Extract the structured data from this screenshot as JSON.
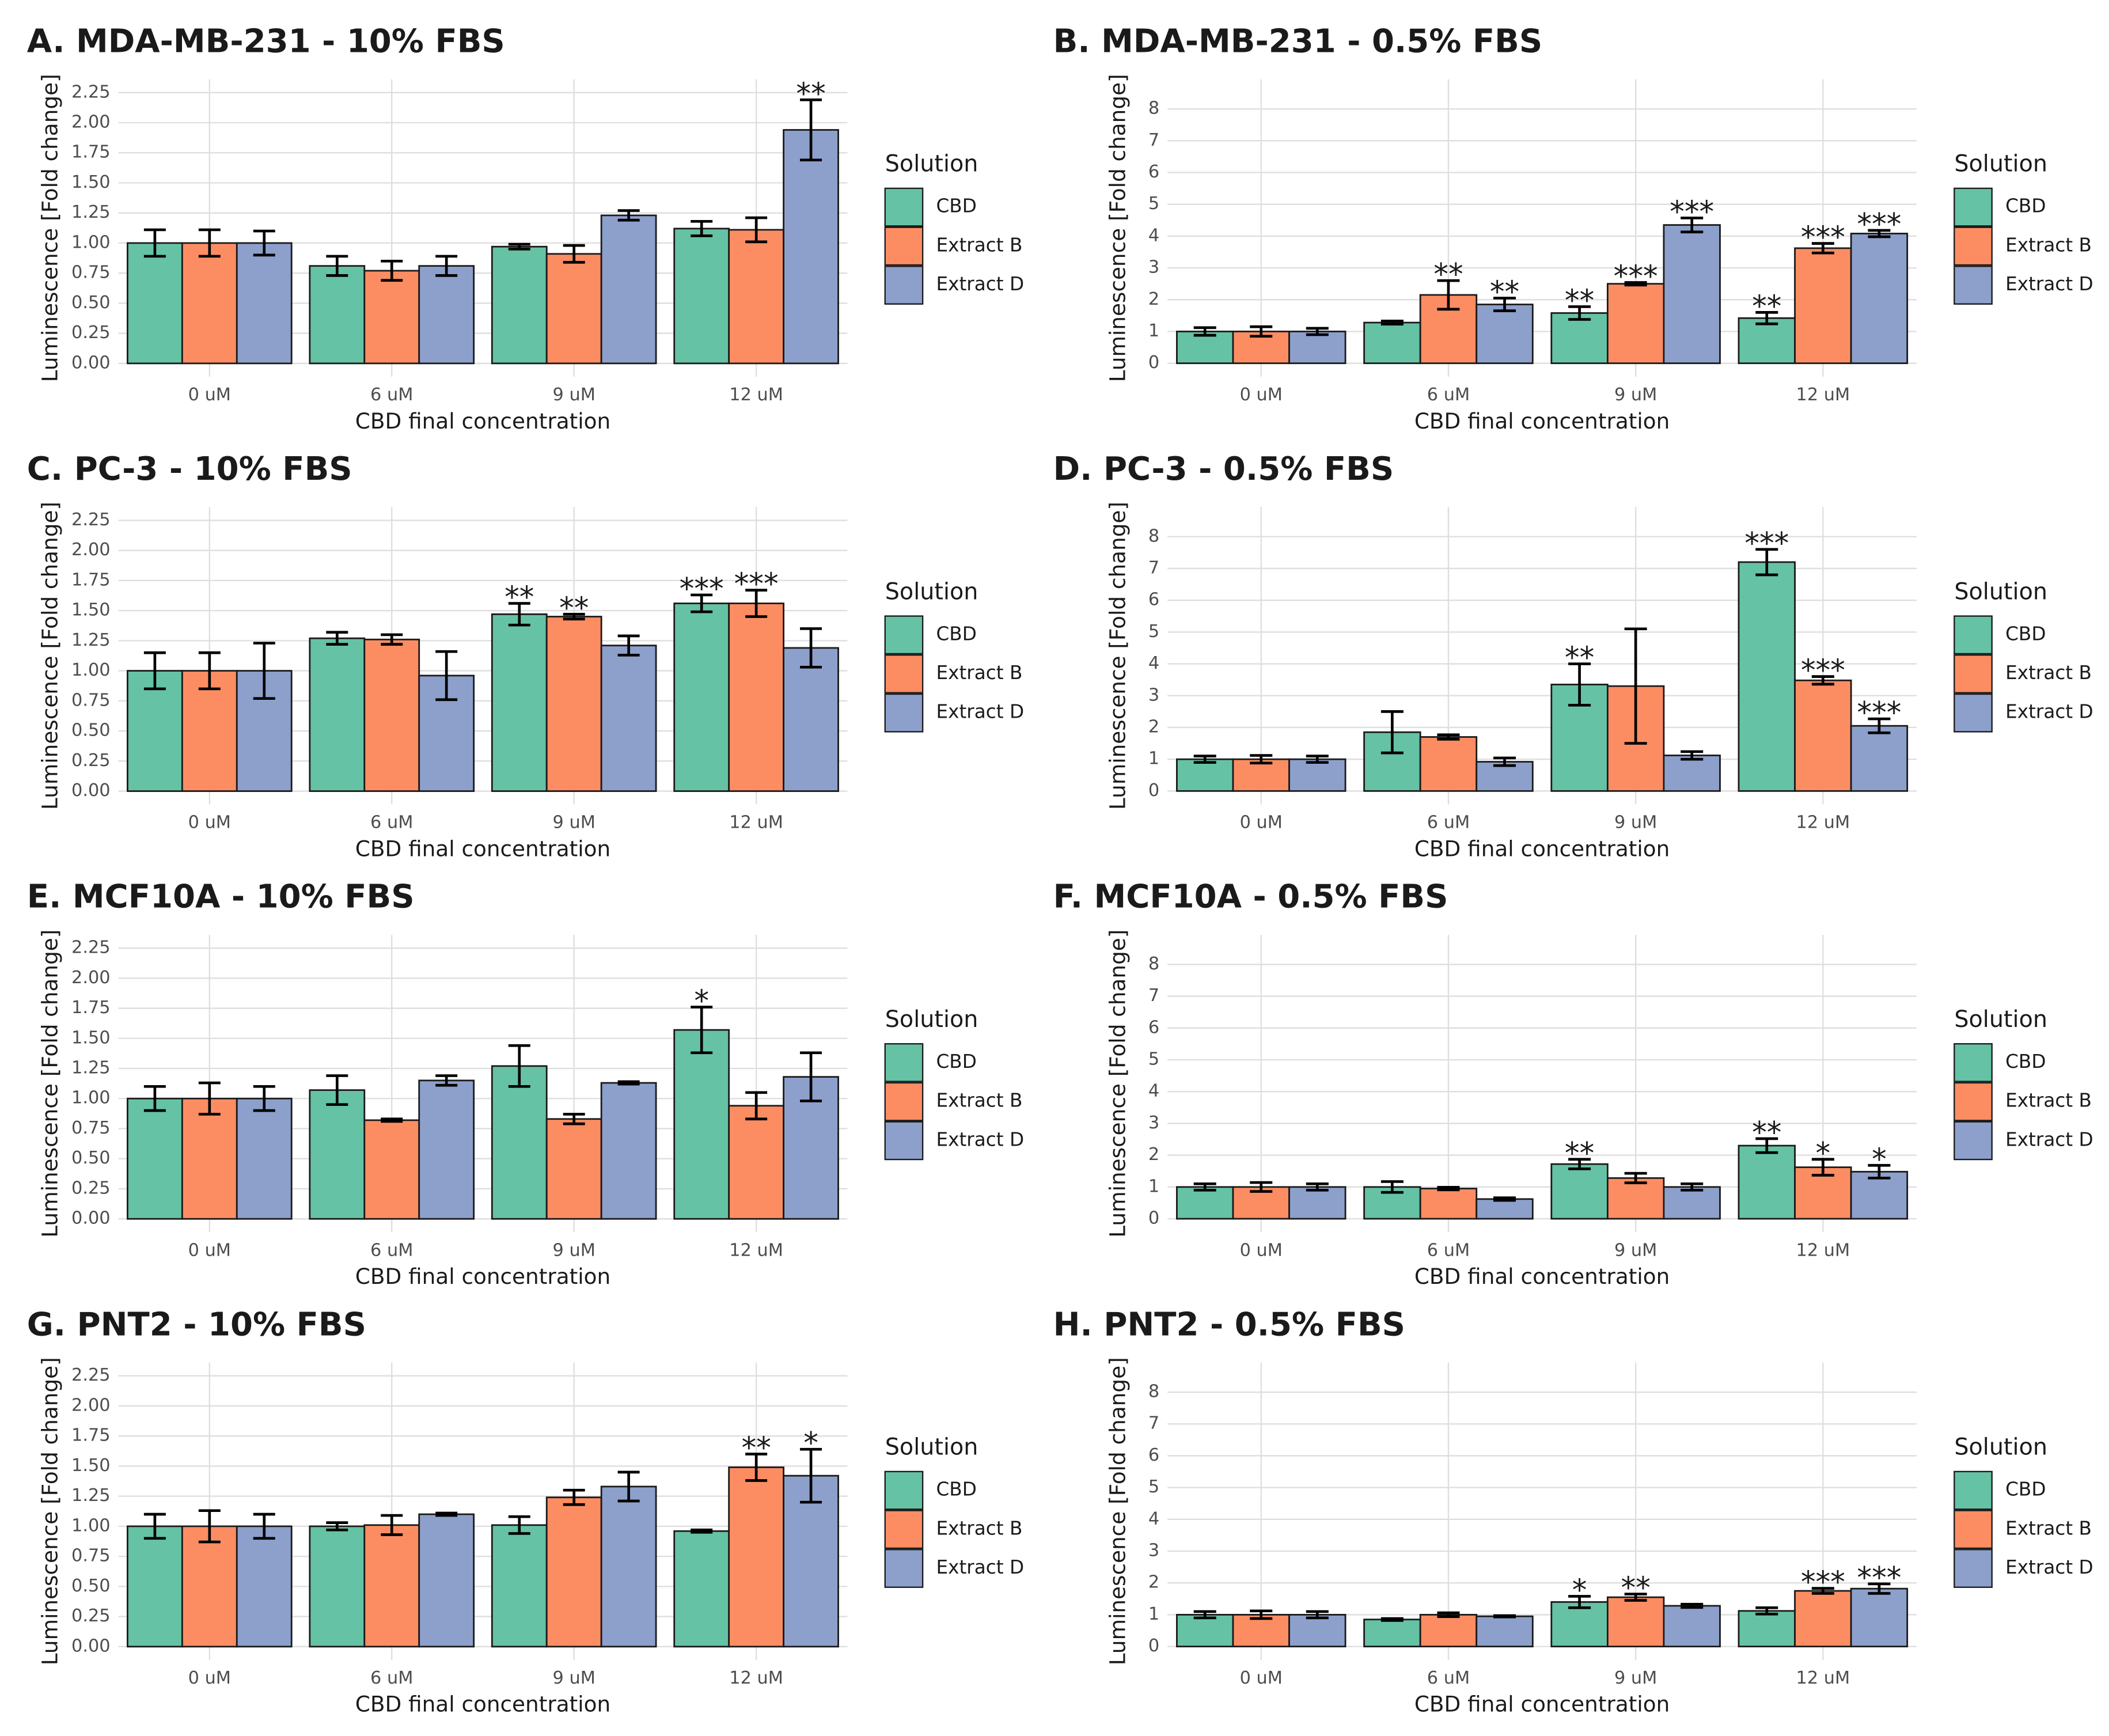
{
  "chart_data": [
    {
      "type": "bar",
      "title": "A. MDA-MB-231 - 10% FBS",
      "x_label": "CBD final concentration",
      "y_label": "Luminescence [Fold change]",
      "legend_title": "Solution",
      "legend": "right",
      "grid": true,
      "categories": [
        "0 uM",
        "6 uM",
        "9 uM",
        "12 uM"
      ],
      "ylim": [
        -0.11,
        2.36
      ],
      "yticks": [
        {
          "value": 0,
          "label": "0.00"
        },
        {
          "value": 0.25,
          "label": "0.25"
        },
        {
          "value": 0.5,
          "label": "0.50"
        },
        {
          "value": 0.75,
          "label": "0.75"
        },
        {
          "value": 1,
          "label": "1.00"
        },
        {
          "value": 1.25,
          "label": "1.25"
        },
        {
          "value": 1.5,
          "label": "1.50"
        },
        {
          "value": 1.75,
          "label": "1.75"
        },
        {
          "value": 2,
          "label": "2.00"
        },
        {
          "value": 2.25,
          "label": "2.25"
        }
      ],
      "series": [
        {
          "name": "CBD",
          "color": "#66c2a5",
          "values": [
            1.0,
            0.81,
            0.97,
            1.12
          ],
          "errors": [
            0.11,
            0.08,
            0.02,
            0.06
          ],
          "significance": [
            null,
            null,
            null,
            null
          ]
        },
        {
          "name": "Extract B",
          "color": "#fc8d62",
          "values": [
            1.0,
            0.77,
            0.91,
            1.11
          ],
          "errors": [
            0.11,
            0.08,
            0.07,
            0.1
          ],
          "significance": [
            null,
            null,
            null,
            null
          ]
        },
        {
          "name": "Extract D",
          "color": "#8da0cb",
          "values": [
            1.0,
            0.81,
            1.23,
            1.94
          ],
          "errors": [
            0.1,
            0.08,
            0.04,
            0.25
          ],
          "significance": [
            null,
            null,
            null,
            "**"
          ]
        }
      ]
    },
    {
      "type": "bar",
      "title": "B. MDA-MB-231 - 0.5% FBS",
      "x_label": "CBD final concentration",
      "y_label": "Luminescence [Fold change]",
      "legend_title": "Solution",
      "legend": "right",
      "grid": true,
      "categories": [
        "0 uM",
        "6 uM",
        "9 uM",
        "12 uM"
      ],
      "ylim": [
        -0.42,
        8.93
      ],
      "yticks": [
        0,
        1,
        2,
        3,
        4,
        5,
        6,
        7,
        8
      ],
      "series": [
        {
          "name": "CBD",
          "color": "#66c2a5",
          "values": [
            1.0,
            1.28,
            1.58,
            1.42
          ],
          "errors": [
            0.12,
            0.05,
            0.2,
            0.18
          ],
          "significance": [
            null,
            null,
            "**",
            "**"
          ]
        },
        {
          "name": "Extract B",
          "color": "#fc8d62",
          "values": [
            1.0,
            2.15,
            2.5,
            3.62
          ],
          "errors": [
            0.15,
            0.45,
            0.04,
            0.15
          ],
          "significance": [
            null,
            "**",
            "***",
            "***"
          ]
        },
        {
          "name": "Extract D",
          "color": "#8da0cb",
          "values": [
            1.0,
            1.85,
            4.35,
            4.08
          ],
          "errors": [
            0.1,
            0.2,
            0.22,
            0.1
          ],
          "significance": [
            null,
            "**",
            "***",
            "***"
          ]
        }
      ]
    },
    {
      "type": "bar",
      "title": "C. PC-3 - 10% FBS",
      "x_label": "CBD final concentration",
      "y_label": "Luminescence [Fold change]",
      "legend_title": "Solution",
      "legend": "right",
      "grid": true,
      "categories": [
        "0 uM",
        "6 uM",
        "9 uM",
        "12 uM"
      ],
      "ylim": [
        -0.11,
        2.36
      ],
      "yticks": [
        {
          "value": 0,
          "label": "0.00"
        },
        {
          "value": 0.25,
          "label": "0.25"
        },
        {
          "value": 0.5,
          "label": "0.50"
        },
        {
          "value": 0.75,
          "label": "0.75"
        },
        {
          "value": 1,
          "label": "1.00"
        },
        {
          "value": 1.25,
          "label": "1.25"
        },
        {
          "value": 1.5,
          "label": "1.50"
        },
        {
          "value": 1.75,
          "label": "1.75"
        },
        {
          "value": 2,
          "label": "2.00"
        },
        {
          "value": 2.25,
          "label": "2.25"
        }
      ],
      "series": [
        {
          "name": "CBD",
          "color": "#66c2a5",
          "values": [
            1.0,
            1.27,
            1.47,
            1.56
          ],
          "errors": [
            0.15,
            0.05,
            0.09,
            0.07
          ],
          "significance": [
            null,
            null,
            "**",
            "***"
          ]
        },
        {
          "name": "Extract B",
          "color": "#fc8d62",
          "values": [
            1.0,
            1.26,
            1.45,
            1.56
          ],
          "errors": [
            0.15,
            0.04,
            0.02,
            0.11
          ],
          "significance": [
            null,
            null,
            "**",
            "***"
          ]
        },
        {
          "name": "Extract D",
          "color": "#8da0cb",
          "values": [
            1.0,
            0.96,
            1.21,
            1.19
          ],
          "errors": [
            0.23,
            0.2,
            0.08,
            0.16
          ],
          "significance": [
            null,
            null,
            null,
            null
          ]
        }
      ]
    },
    {
      "type": "bar",
      "title": "D. PC-3 - 0.5% FBS",
      "x_label": "CBD final concentration",
      "y_label": "Luminescence [Fold change]",
      "legend_title": "Solution",
      "legend": "right",
      "grid": true,
      "categories": [
        "0 uM",
        "6 uM",
        "9 uM",
        "12 uM"
      ],
      "ylim": [
        -0.42,
        8.93
      ],
      "yticks": [
        0,
        1,
        2,
        3,
        4,
        5,
        6,
        7,
        8
      ],
      "series": [
        {
          "name": "CBD",
          "color": "#66c2a5",
          "values": [
            1.0,
            1.85,
            3.35,
            7.2
          ],
          "errors": [
            0.1,
            0.65,
            0.65,
            0.4
          ],
          "significance": [
            null,
            null,
            "**",
            "***"
          ]
        },
        {
          "name": "Extract B",
          "color": "#fc8d62",
          "values": [
            1.0,
            1.7,
            3.3,
            3.48
          ],
          "errors": [
            0.12,
            0.07,
            1.8,
            0.12
          ],
          "significance": [
            null,
            null,
            null,
            "***"
          ]
        },
        {
          "name": "Extract D",
          "color": "#8da0cb",
          "values": [
            1.0,
            0.92,
            1.12,
            2.05
          ],
          "errors": [
            0.1,
            0.12,
            0.12,
            0.22
          ],
          "significance": [
            null,
            null,
            null,
            "***"
          ]
        }
      ]
    },
    {
      "type": "bar",
      "title": "E. MCF10A - 10% FBS",
      "x_label": "CBD final concentration",
      "y_label": "Luminescence [Fold change]",
      "legend_title": "Solution",
      "legend": "right",
      "grid": true,
      "categories": [
        "0 uM",
        "6 uM",
        "9 uM",
        "12 uM"
      ],
      "ylim": [
        -0.11,
        2.36
      ],
      "yticks": [
        {
          "value": 0,
          "label": "0.00"
        },
        {
          "value": 0.25,
          "label": "0.25"
        },
        {
          "value": 0.5,
          "label": "0.50"
        },
        {
          "value": 0.75,
          "label": "0.75"
        },
        {
          "value": 1,
          "label": "1.00"
        },
        {
          "value": 1.25,
          "label": "1.25"
        },
        {
          "value": 1.5,
          "label": "1.50"
        },
        {
          "value": 1.75,
          "label": "1.75"
        },
        {
          "value": 2,
          "label": "2.00"
        },
        {
          "value": 2.25,
          "label": "2.25"
        }
      ],
      "series": [
        {
          "name": "CBD",
          "color": "#66c2a5",
          "values": [
            1.0,
            1.07,
            1.27,
            1.57
          ],
          "errors": [
            0.1,
            0.12,
            0.17,
            0.19
          ],
          "significance": [
            null,
            null,
            null,
            "*"
          ]
        },
        {
          "name": "Extract B",
          "color": "#fc8d62",
          "values": [
            1.0,
            0.82,
            0.83,
            0.94
          ],
          "errors": [
            0.13,
            0.01,
            0.04,
            0.11
          ],
          "significance": [
            null,
            null,
            null,
            null
          ]
        },
        {
          "name": "Extract D",
          "color": "#8da0cb",
          "values": [
            1.0,
            1.15,
            1.13,
            1.18
          ],
          "errors": [
            0.1,
            0.04,
            0.01,
            0.2
          ],
          "significance": [
            null,
            null,
            null,
            null
          ]
        }
      ]
    },
    {
      "type": "bar",
      "title": "F. MCF10A - 0.5% FBS",
      "x_label": "CBD final concentration",
      "y_label": "Luminescence [Fold change]",
      "legend_title": "Solution",
      "legend": "right",
      "grid": true,
      "categories": [
        "0 uM",
        "6 uM",
        "9 uM",
        "12 uM"
      ],
      "ylim": [
        -0.42,
        8.93
      ],
      "yticks": [
        0,
        1,
        2,
        3,
        4,
        5,
        6,
        7,
        8
      ],
      "series": [
        {
          "name": "CBD",
          "color": "#66c2a5",
          "values": [
            1.0,
            1.0,
            1.72,
            2.3
          ],
          "errors": [
            0.1,
            0.17,
            0.15,
            0.22
          ],
          "significance": [
            null,
            null,
            "**",
            "**"
          ]
        },
        {
          "name": "Extract B",
          "color": "#fc8d62",
          "values": [
            1.0,
            0.95,
            1.28,
            1.62
          ],
          "errors": [
            0.14,
            0.04,
            0.15,
            0.25
          ],
          "significance": [
            null,
            null,
            null,
            "*"
          ]
        },
        {
          "name": "Extract D",
          "color": "#8da0cb",
          "values": [
            1.0,
            0.62,
            1.0,
            1.48
          ],
          "errors": [
            0.1,
            0.04,
            0.1,
            0.2
          ],
          "significance": [
            null,
            null,
            null,
            "*"
          ]
        }
      ]
    },
    {
      "type": "bar",
      "title": "G. PNT2 - 10% FBS",
      "x_label": "CBD final concentration",
      "y_label": "Luminescence [Fold change]",
      "legend_title": "Solution",
      "legend": "right",
      "grid": true,
      "categories": [
        "0 uM",
        "6 uM",
        "9 uM",
        "12 uM"
      ],
      "ylim": [
        -0.11,
        2.36
      ],
      "yticks": [
        {
          "value": 0,
          "label": "0.00"
        },
        {
          "value": 0.25,
          "label": "0.25"
        },
        {
          "value": 0.5,
          "label": "0.50"
        },
        {
          "value": 0.75,
          "label": "0.75"
        },
        {
          "value": 1,
          "label": "1.00"
        },
        {
          "value": 1.25,
          "label": "1.25"
        },
        {
          "value": 1.5,
          "label": "1.50"
        },
        {
          "value": 1.75,
          "label": "1.75"
        },
        {
          "value": 2,
          "label": "2.00"
        },
        {
          "value": 2.25,
          "label": "2.25"
        }
      ],
      "series": [
        {
          "name": "CBD",
          "color": "#66c2a5",
          "values": [
            1.0,
            1.0,
            1.01,
            0.96
          ],
          "errors": [
            0.1,
            0.03,
            0.07,
            0.01
          ],
          "significance": [
            null,
            null,
            null,
            null
          ]
        },
        {
          "name": "Extract B",
          "color": "#fc8d62",
          "values": [
            1.0,
            1.01,
            1.24,
            1.49
          ],
          "errors": [
            0.13,
            0.08,
            0.06,
            0.11
          ],
          "significance": [
            null,
            null,
            null,
            "**"
          ]
        },
        {
          "name": "Extract D",
          "color": "#8da0cb",
          "values": [
            1.0,
            1.1,
            1.33,
            1.42
          ],
          "errors": [
            0.1,
            0.01,
            0.12,
            0.22
          ],
          "significance": [
            null,
            null,
            null,
            "*"
          ]
        }
      ]
    },
    {
      "type": "bar",
      "title": "H. PNT2 - 0.5% FBS",
      "x_label": "CBD final concentration",
      "y_label": "Luminescence [Fold change]",
      "legend_title": "Solution",
      "legend": "right",
      "grid": true,
      "categories": [
        "0 uM",
        "6 uM",
        "9 uM",
        "12 uM"
      ],
      "ylim": [
        -0.42,
        8.93
      ],
      "yticks": [
        0,
        1,
        2,
        3,
        4,
        5,
        6,
        7,
        8
      ],
      "series": [
        {
          "name": "CBD",
          "color": "#66c2a5",
          "values": [
            1.0,
            0.85,
            1.4,
            1.12
          ],
          "errors": [
            0.1,
            0.03,
            0.18,
            0.1
          ],
          "significance": [
            null,
            null,
            "*",
            null
          ]
        },
        {
          "name": "Extract B",
          "color": "#fc8d62",
          "values": [
            1.0,
            1.0,
            1.55,
            1.75
          ],
          "errors": [
            0.12,
            0.06,
            0.1,
            0.08
          ],
          "significance": [
            null,
            null,
            "**",
            "***"
          ]
        },
        {
          "name": "Extract D",
          "color": "#8da0cb",
          "values": [
            1.0,
            0.95,
            1.28,
            1.82
          ],
          "errors": [
            0.1,
            0.02,
            0.05,
            0.15
          ],
          "significance": [
            null,
            null,
            null,
            "***"
          ]
        }
      ]
    }
  ]
}
